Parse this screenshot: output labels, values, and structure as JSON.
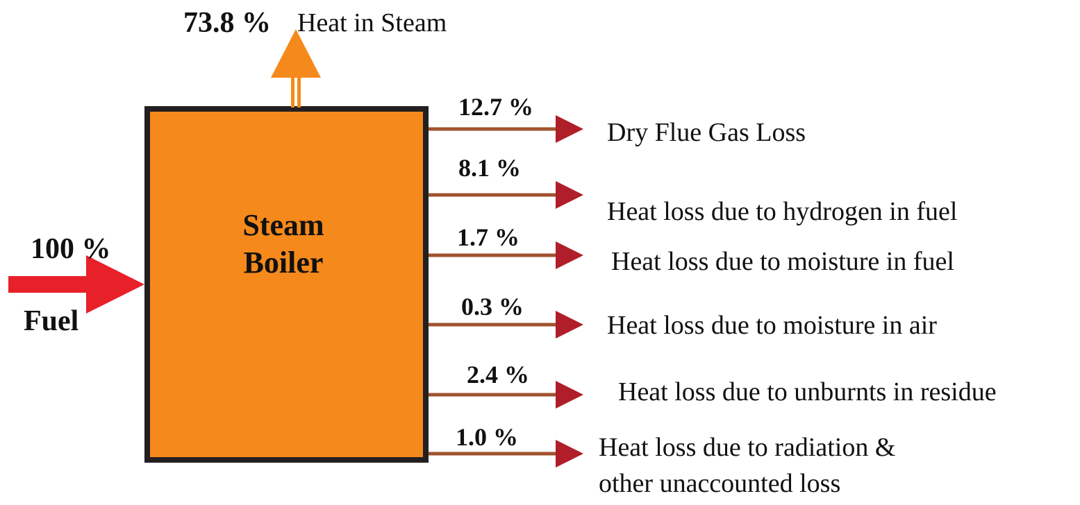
{
  "boiler": {
    "label_line1": "Steam",
    "label_line2": "Boiler"
  },
  "input": {
    "percent": "100 %",
    "label": "Fuel",
    "value": 100
  },
  "output": {
    "percent": "73.8 %",
    "label": "Heat in Steam",
    "value": 73.8
  },
  "losses": [
    {
      "percent": "12.7 %",
      "value": 12.7,
      "label": "Dry Flue Gas Loss"
    },
    {
      "percent": "8.1 %",
      "value": 8.1,
      "label": "Heat loss due to hydrogen in fuel"
    },
    {
      "percent": "1.7 %",
      "value": 1.7,
      "label": "Heat loss due to moisture in fuel"
    },
    {
      "percent": "0.3 %",
      "value": 0.3,
      "label": "Heat loss due to moisture in air"
    },
    {
      "percent": "2.4 %",
      "value": 2.4,
      "label": "Heat loss due to unburnts in residue"
    },
    {
      "percent": "1.0 %",
      "value": 1.0,
      "label": "Heat loss due to radiation &",
      "label_line2": "other unaccounted loss"
    }
  ],
  "colors": {
    "boiler_fill": "#F5891B",
    "boiler_border": "#231F20",
    "fuel_arrow": "#E8202A",
    "steam_arrow": "#F5891B",
    "loss_line": "#A0522D",
    "loss_head": "#B01E2A"
  }
}
